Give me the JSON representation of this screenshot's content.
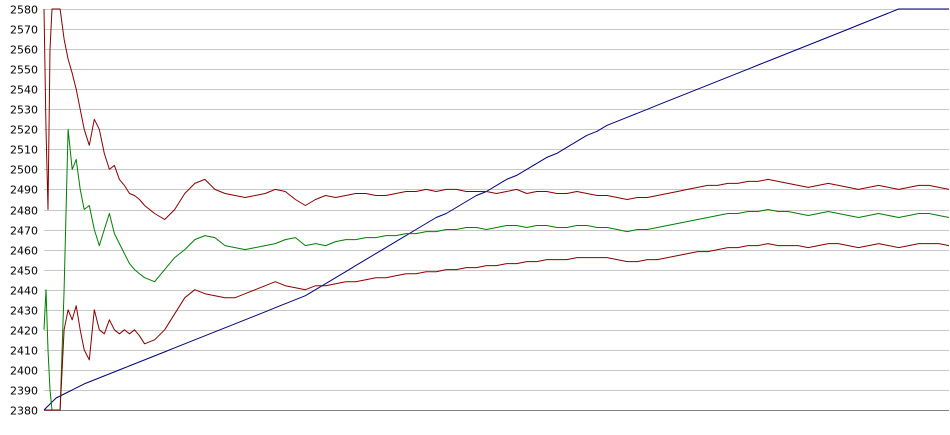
{
  "chart_data": {
    "type": "line",
    "title": "",
    "xlabel": "",
    "ylabel": "",
    "ylim": [
      2380,
      2580
    ],
    "y_ticks": [
      "2380",
      "2390",
      "2400",
      "2410",
      "2420",
      "2430",
      "2440",
      "2450",
      "2460",
      "2470",
      "2480",
      "2490",
      "2500",
      "2510",
      "2520",
      "2530",
      "2540",
      "2550",
      "2560",
      "2570",
      "2580"
    ],
    "x": [
      0,
      2,
      4,
      6,
      8,
      10,
      12,
      16,
      20,
      24,
      28,
      32,
      36,
      40,
      45,
      50,
      55,
      60,
      65,
      70,
      75,
      80,
      85,
      90,
      95,
      100,
      110,
      120,
      130,
      140,
      150,
      160,
      170,
      180,
      190,
      200,
      210,
      220,
      230,
      240,
      250,
      260,
      270,
      280,
      290,
      300,
      310,
      320,
      330,
      340,
      350,
      360,
      370,
      380,
      390,
      400,
      410,
      420,
      430,
      440,
      450,
      460,
      470,
      480,
      490,
      500,
      510,
      520,
      530,
      540,
      550,
      560,
      570,
      580,
      590,
      600,
      610,
      620,
      630,
      640,
      650,
      660,
      670,
      680,
      690,
      700,
      710,
      720,
      730,
      740,
      750,
      760,
      770,
      780,
      790,
      800,
      810,
      820,
      830,
      840,
      850,
      860,
      870,
      880,
      890,
      900
    ],
    "grid": true,
    "legend": "none",
    "series": [
      {
        "color": "#000080",
        "values": [
          2380,
          2381,
          2382,
          2383,
          2384,
          2385,
          2386,
          2387,
          2388,
          2389,
          2390,
          2391,
          2392,
          2393,
          2394,
          2395,
          2396,
          2397,
          2398,
          2399,
          2400,
          2401,
          2402,
          2403,
          2404,
          2405,
          2407,
          2409,
          2411,
          2413,
          2415,
          2417,
          2419,
          2421,
          2423,
          2425,
          2427,
          2429,
          2431,
          2433,
          2435,
          2437,
          2440,
          2443,
          2446,
          2449,
          2452,
          2455,
          2458,
          2461,
          2464,
          2467,
          2470,
          2473,
          2476,
          2478,
          2481,
          2484,
          2487,
          2489,
          2492,
          2495,
          2497,
          2500,
          2503,
          2506,
          2508,
          2511,
          2514,
          2517,
          2519,
          2522,
          2524,
          2526,
          2528,
          2530,
          2532,
          2534,
          2536,
          2538,
          2540,
          2542,
          2544,
          2546,
          2548,
          2550,
          2552,
          2554,
          2556,
          2558,
          2560,
          2562,
          2564,
          2566,
          2568,
          2570,
          2572,
          2574,
          2576,
          2578,
          2580,
          2580,
          2580,
          2580,
          2580,
          2580
        ]
      },
      {
        "color": "#008000",
        "values": [
          2420,
          2440,
          2410,
          2390,
          2380,
          2380,
          2380,
          2380,
          2440,
          2520,
          2500,
          2505,
          2490,
          2480,
          2482,
          2470,
          2462,
          2470,
          2478,
          2468,
          2463,
          2458,
          2453,
          2450,
          2448,
          2446,
          2444,
          2450,
          2456,
          2460,
          2465,
          2467,
          2466,
          2462,
          2461,
          2460,
          2461,
          2462,
          2463,
          2465,
          2466,
          2462,
          2463,
          2462,
          2464,
          2465,
          2465,
          2466,
          2466,
          2467,
          2467,
          2468,
          2468,
          2469,
          2469,
          2470,
          2470,
          2471,
          2471,
          2470,
          2471,
          2472,
          2472,
          2471,
          2472,
          2472,
          2471,
          2471,
          2472,
          2472,
          2471,
          2471,
          2470,
          2469,
          2470,
          2470,
          2471,
          2472,
          2473,
          2474,
          2475,
          2476,
          2477,
          2478,
          2478,
          2479,
          2479,
          2480,
          2479,
          2479,
          2478,
          2477,
          2478,
          2479,
          2478,
          2477,
          2476,
          2477,
          2478,
          2477,
          2476,
          2477,
          2478,
          2478,
          2477,
          2476
        ]
      },
      {
        "color": "#8b0000",
        "values": [
          2580,
          2520,
          2480,
          2560,
          2580,
          2580,
          2580,
          2580,
          2565,
          2555,
          2548,
          2540,
          2530,
          2520,
          2512,
          2525,
          2520,
          2508,
          2500,
          2502,
          2495,
          2492,
          2488,
          2487,
          2485,
          2482,
          2478,
          2475,
          2480,
          2488,
          2493,
          2495,
          2490,
          2488,
          2487,
          2486,
          2487,
          2488,
          2490,
          2489,
          2485,
          2482,
          2485,
          2487,
          2486,
          2487,
          2488,
          2488,
          2487,
          2487,
          2488,
          2489,
          2489,
          2490,
          2489,
          2490,
          2490,
          2489,
          2489,
          2489,
          2488,
          2489,
          2490,
          2488,
          2489,
          2489,
          2488,
          2488,
          2489,
          2488,
          2487,
          2487,
          2486,
          2485,
          2486,
          2486,
          2487,
          2488,
          2489,
          2490,
          2491,
          2492,
          2492,
          2493,
          2493,
          2494,
          2494,
          2495,
          2494,
          2493,
          2492,
          2491,
          2492,
          2493,
          2492,
          2491,
          2490,
          2491,
          2492,
          2491,
          2490,
          2491,
          2492,
          2492,
          2491,
          2490
        ]
      },
      {
        "color": "#8b0000",
        "values": [
          2380,
          2380,
          2380,
          2380,
          2380,
          2380,
          2380,
          2380,
          2420,
          2430,
          2425,
          2432,
          2420,
          2410,
          2405,
          2430,
          2420,
          2418,
          2425,
          2420,
          2418,
          2420,
          2418,
          2420,
          2417,
          2413,
          2415,
          2420,
          2428,
          2436,
          2440,
          2438,
          2437,
          2436,
          2436,
          2438,
          2440,
          2442,
          2444,
          2442,
          2441,
          2440,
          2442,
          2442,
          2443,
          2444,
          2444,
          2445,
          2446,
          2446,
          2447,
          2448,
          2448,
          2449,
          2449,
          2450,
          2450,
          2451,
          2451,
          2452,
          2452,
          2453,
          2453,
          2454,
          2454,
          2455,
          2455,
          2455,
          2456,
          2456,
          2456,
          2456,
          2455,
          2454,
          2454,
          2455,
          2455,
          2456,
          2457,
          2458,
          2459,
          2459,
          2460,
          2461,
          2461,
          2462,
          2462,
          2463,
          2462,
          2462,
          2462,
          2461,
          2462,
          2463,
          2463,
          2462,
          2461,
          2462,
          2463,
          2462,
          2461,
          2462,
          2463,
          2463,
          2463,
          2462
        ]
      }
    ]
  }
}
